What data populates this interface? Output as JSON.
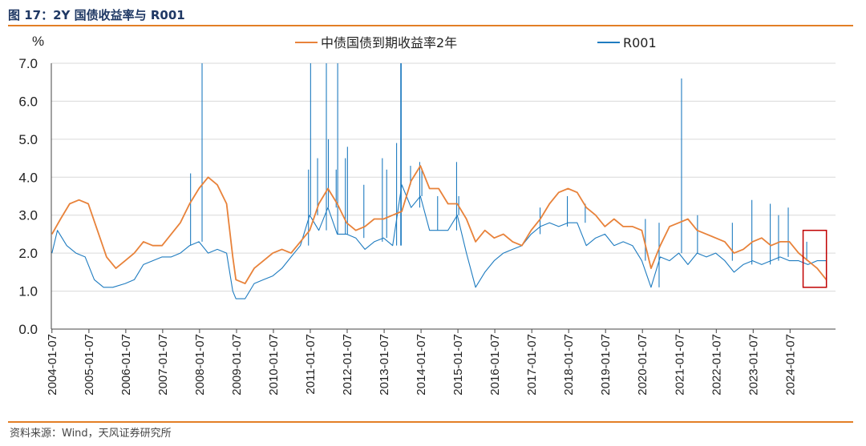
{
  "figure": {
    "title": "图 17：2Y 国债收益率与 R001",
    "source": "资料来源：Wind，天风证券研究所",
    "accent_color": "#e37f26"
  },
  "chart_data": {
    "type": "line",
    "ylabel": "%",
    "ylim": [
      0,
      7
    ],
    "yticks": [
      "0.0",
      "1.0",
      "2.0",
      "3.0",
      "4.0",
      "5.0",
      "6.0",
      "7.0"
    ],
    "xlim": [
      "2004-01-01",
      "2025-04-01"
    ],
    "xticks": [
      "2004-01-07",
      "2005-01-07",
      "2006-01-07",
      "2007-01-07",
      "2008-01-07",
      "2009-01-07",
      "2010-01-07",
      "2011-01-07",
      "2012-01-07",
      "2013-01-07",
      "2014-01-07",
      "2015-01-07",
      "2016-01-07",
      "2017-01-07",
      "2018-01-07",
      "2019-01-07",
      "2020-01-07",
      "2021-01-07",
      "2022-01-07",
      "2023-01-07",
      "2024-01-07"
    ],
    "grid": "horizontal",
    "legend_position": "top",
    "highlight_box": {
      "x_range": [
        "2024-05-15",
        "2025-01-01"
      ],
      "y_range": [
        1.1,
        2.6
      ],
      "color": "#c00000"
    },
    "series": [
      {
        "name": "中债国债到期收益率2年",
        "color": "#e8823a",
        "x": [
          "2004-01-07",
          "2004-04-01",
          "2004-07-01",
          "2004-10-01",
          "2005-01-01",
          "2005-04-01",
          "2005-07-01",
          "2005-10-01",
          "2006-01-01",
          "2006-04-01",
          "2006-07-01",
          "2006-10-01",
          "2007-01-01",
          "2007-04-01",
          "2007-07-01",
          "2007-10-01",
          "2008-01-01",
          "2008-04-01",
          "2008-07-01",
          "2008-10-01",
          "2008-12-01",
          "2009-01-01",
          "2009-04-01",
          "2009-07-01",
          "2009-10-01",
          "2010-01-01",
          "2010-04-01",
          "2010-07-01",
          "2010-10-01",
          "2011-01-01",
          "2011-04-01",
          "2011-07-01",
          "2011-10-01",
          "2012-01-01",
          "2012-04-01",
          "2012-07-01",
          "2012-10-01",
          "2013-01-01",
          "2013-04-01",
          "2013-07-01",
          "2013-10-01",
          "2014-01-01",
          "2014-04-01",
          "2014-07-01",
          "2014-10-01",
          "2015-01-01",
          "2015-04-01",
          "2015-07-01",
          "2015-10-01",
          "2016-01-01",
          "2016-04-01",
          "2016-07-01",
          "2016-10-01",
          "2017-01-01",
          "2017-04-01",
          "2017-07-01",
          "2017-10-01",
          "2018-01-01",
          "2018-04-01",
          "2018-07-01",
          "2018-10-01",
          "2019-01-01",
          "2019-04-01",
          "2019-07-01",
          "2019-10-01",
          "2020-01-01",
          "2020-04-01",
          "2020-07-01",
          "2020-10-01",
          "2021-01-01",
          "2021-04-01",
          "2021-07-01",
          "2021-10-01",
          "2022-01-01",
          "2022-04-01",
          "2022-07-01",
          "2022-10-01",
          "2023-01-01",
          "2023-04-01",
          "2023-07-01",
          "2023-10-01",
          "2024-01-01",
          "2024-04-01",
          "2024-07-01",
          "2024-10-01",
          "2024-12-31"
        ],
        "values": [
          2.5,
          2.9,
          3.3,
          3.4,
          3.3,
          2.6,
          1.9,
          1.6,
          1.8,
          2.0,
          2.3,
          2.2,
          2.2,
          2.5,
          2.8,
          3.3,
          3.7,
          4.0,
          3.8,
          3.3,
          1.9,
          1.3,
          1.2,
          1.6,
          1.8,
          2.0,
          2.1,
          2.0,
          2.3,
          2.6,
          3.3,
          3.7,
          3.3,
          2.8,
          2.6,
          2.7,
          2.9,
          2.9,
          3.0,
          3.1,
          3.9,
          4.3,
          3.7,
          3.7,
          3.3,
          3.3,
          2.9,
          2.3,
          2.6,
          2.4,
          2.5,
          2.3,
          2.2,
          2.6,
          2.9,
          3.3,
          3.6,
          3.7,
          3.6,
          3.2,
          3.0,
          2.7,
          2.9,
          2.7,
          2.7,
          2.6,
          1.6,
          2.2,
          2.7,
          2.8,
          2.9,
          2.6,
          2.5,
          2.4,
          2.3,
          2.0,
          2.1,
          2.3,
          2.4,
          2.2,
          2.3,
          2.3,
          2.0,
          1.8,
          1.6,
          1.3
        ]
      },
      {
        "name": "R001",
        "color": "#1f7cc0",
        "x": [
          "2004-01-07",
          "2004-03-01",
          "2004-06-01",
          "2004-09-01",
          "2004-12-01",
          "2005-03-01",
          "2005-06-01",
          "2005-09-01",
          "2006-01-01",
          "2006-04-01",
          "2006-07-01",
          "2006-10-01",
          "2007-01-01",
          "2007-04-01",
          "2007-07-01",
          "2007-10-01",
          "2008-01-01",
          "2008-04-01",
          "2008-07-01",
          "2008-10-01",
          "2008-12-01",
          "2009-01-01",
          "2009-04-01",
          "2009-07-01",
          "2009-10-01",
          "2010-01-01",
          "2010-04-01",
          "2010-07-01",
          "2010-10-01",
          "2011-01-01",
          "2011-04-01",
          "2011-07-01",
          "2011-10-01",
          "2012-01-01",
          "2012-04-01",
          "2012-07-01",
          "2012-10-01",
          "2013-01-01",
          "2013-04-01",
          "2013-07-01",
          "2013-10-01",
          "2014-01-01",
          "2014-04-01",
          "2014-07-01",
          "2014-10-01",
          "2015-01-01",
          "2015-04-01",
          "2015-07-01",
          "2015-10-01",
          "2016-01-01",
          "2016-04-01",
          "2016-07-01",
          "2016-10-01",
          "2017-01-01",
          "2017-04-01",
          "2017-07-01",
          "2017-10-01",
          "2018-01-01",
          "2018-04-01",
          "2018-07-01",
          "2018-10-01",
          "2019-01-01",
          "2019-04-01",
          "2019-07-01",
          "2019-10-01",
          "2020-01-01",
          "2020-04-01",
          "2020-07-01",
          "2020-10-01",
          "2021-01-01",
          "2021-04-01",
          "2021-07-01",
          "2021-10-01",
          "2022-01-01",
          "2022-04-01",
          "2022-07-01",
          "2022-10-01",
          "2023-01-01",
          "2023-04-01",
          "2023-07-01",
          "2023-10-01",
          "2024-01-01",
          "2024-04-01",
          "2024-07-01",
          "2024-10-01",
          "2024-12-31"
        ],
        "values": [
          2.0,
          2.6,
          2.2,
          2.0,
          1.9,
          1.3,
          1.1,
          1.1,
          1.2,
          1.3,
          1.7,
          1.8,
          1.9,
          1.9,
          2.0,
          2.2,
          2.3,
          2.0,
          2.1,
          2.0,
          1.0,
          0.8,
          0.8,
          1.2,
          1.3,
          1.4,
          1.6,
          1.9,
          2.2,
          3.0,
          2.6,
          3.2,
          2.5,
          2.5,
          2.4,
          2.1,
          2.3,
          2.4,
          2.2,
          3.8,
          3.2,
          3.5,
          2.6,
          2.6,
          2.6,
          3.0,
          2.0,
          1.1,
          1.5,
          1.8,
          2.0,
          2.1,
          2.2,
          2.5,
          2.7,
          2.8,
          2.7,
          2.8,
          2.8,
          2.2,
          2.4,
          2.5,
          2.2,
          2.3,
          2.2,
          1.8,
          1.1,
          1.9,
          1.8,
          2.0,
          1.7,
          2.0,
          1.9,
          2.0,
          1.8,
          1.5,
          1.7,
          1.8,
          1.7,
          1.8,
          1.9,
          1.8,
          1.8,
          1.7,
          1.8,
          1.8
        ]
      }
    ],
    "spikes": {
      "series": "R001",
      "x": [
        "2007-10-10",
        "2008-02-01",
        "2010-12-20",
        "2011-01-10",
        "2011-03-20",
        "2011-06-15",
        "2011-07-05",
        "2011-09-20",
        "2011-10-05",
        "2011-12-20",
        "2012-01-10",
        "2012-06-20",
        "2012-12-20",
        "2013-02-01",
        "2013-05-10",
        "2013-06-20",
        "2013-06-25",
        "2013-09-25",
        "2013-12-25",
        "2014-01-15",
        "2014-06-20",
        "2014-12-25",
        "2015-01-15",
        "2017-03-30",
        "2017-12-25",
        "2018-06-20",
        "2020-02-05",
        "2020-06-20",
        "2021-01-28",
        "2021-07-05",
        "2022-06-15",
        "2022-12-25",
        "2023-06-25",
        "2023-09-15",
        "2023-12-20",
        "2024-06-20"
      ],
      "values": [
        4.1,
        7.0,
        4.2,
        7.0,
        4.5,
        7.0,
        5.0,
        4.2,
        7.0,
        4.5,
        4.8,
        3.8,
        4.5,
        4.2,
        4.9,
        7.0,
        7.0,
        4.3,
        4.4,
        4.2,
        3.5,
        4.4,
        3.5,
        3.2,
        3.5,
        3.3,
        2.9,
        2.8,
        6.6,
        3.0,
        2.8,
        3.4,
        3.3,
        3.0,
        3.2,
        2.3
      ]
    }
  }
}
